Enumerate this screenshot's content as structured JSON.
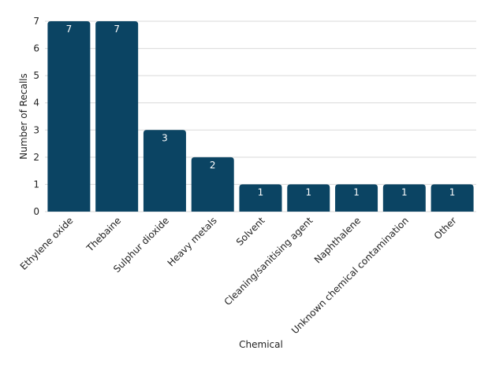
{
  "chart_data": {
    "type": "bar",
    "title": "",
    "xlabel": "Chemical",
    "ylabel": "Number of Recalls",
    "categories": [
      "Ethylene oxide",
      "Thebaine",
      "Sulphur dioxide",
      "Heavy metals",
      "Solvent",
      "Cleaning/sanitising agent",
      "Naphthalene",
      "Unknown chemical contamination",
      "Other"
    ],
    "values": [
      7,
      7,
      3,
      2,
      1,
      1,
      1,
      1,
      1
    ],
    "ylim": [
      0,
      7
    ],
    "yticks": [
      0,
      1,
      2,
      3,
      4,
      5,
      6,
      7
    ],
    "grid": true,
    "data_labels": true,
    "bar_color": "#0b4463"
  }
}
